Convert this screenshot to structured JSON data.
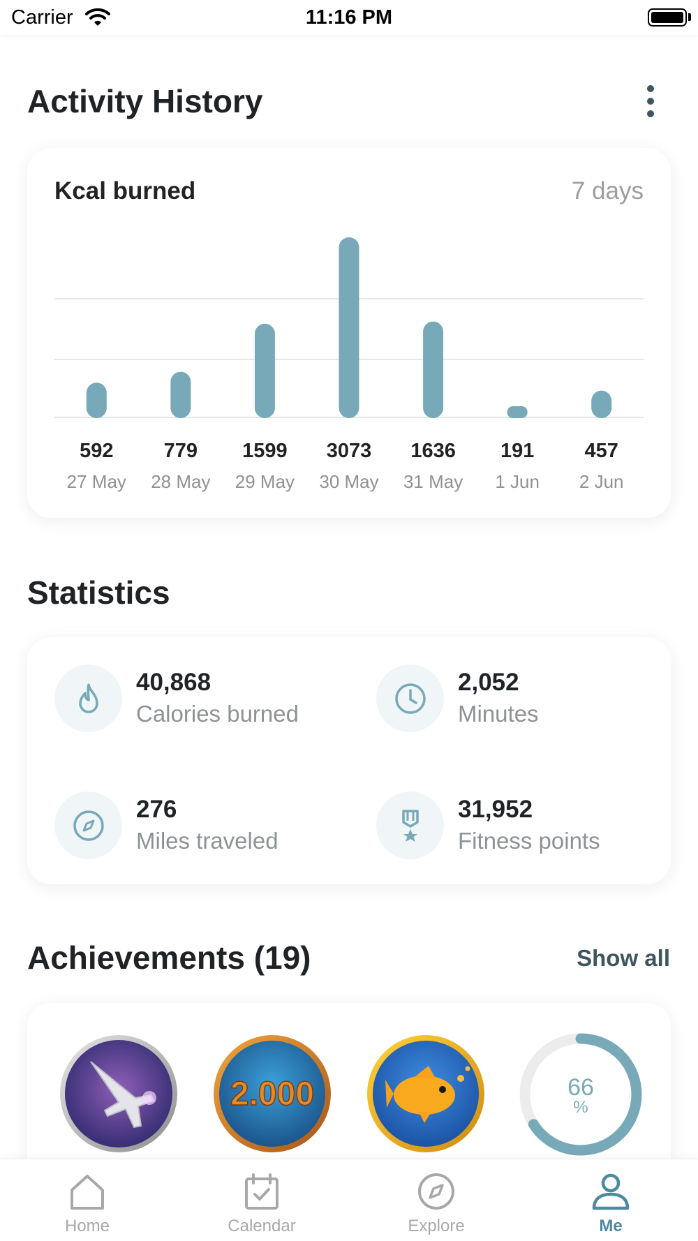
{
  "status_bar": {
    "carrier": "Carrier",
    "time": "11:16 PM"
  },
  "activity": {
    "title": "Activity History",
    "card_title": "Kcal burned",
    "period": "7 days"
  },
  "chart_data": {
    "type": "bar",
    "title": "Kcal burned",
    "categories": [
      "27 May",
      "28 May",
      "29 May",
      "30 May",
      "31 May",
      "1 Jun",
      "2 Jun"
    ],
    "values": [
      592,
      779,
      1599,
      3073,
      1636,
      191,
      457
    ],
    "xlabel": "",
    "ylabel": "",
    "ylim": [
      0,
      3073
    ],
    "grid": true,
    "bar_color": "#77a9b8"
  },
  "statistics": {
    "title": "Statistics",
    "items": [
      {
        "value": "40,868",
        "label": "Calories burned",
        "icon": "flame-icon"
      },
      {
        "value": "2,052",
        "label": "Minutes",
        "icon": "clock-icon"
      },
      {
        "value": "276",
        "label": "Miles traveled",
        "icon": "compass-icon"
      },
      {
        "value": "31,952",
        "label": "Fitness points",
        "icon": "medal-icon"
      }
    ]
  },
  "achievements": {
    "title": "Achievements (19)",
    "show_all": "Show all",
    "badges": [
      {
        "icon": "jet-badge-icon"
      },
      {
        "icon": "2000-badge-icon",
        "text": "2.000"
      },
      {
        "icon": "goldfish-badge-icon"
      }
    ],
    "progress": {
      "value": 66,
      "number": "66",
      "unit": "%"
    }
  },
  "tabs": [
    {
      "label": "Home",
      "icon": "home-icon",
      "active": false
    },
    {
      "label": "Calendar",
      "icon": "calendar-icon",
      "active": false
    },
    {
      "label": "Explore",
      "icon": "compass-icon",
      "active": false
    },
    {
      "label": "Me",
      "icon": "user-icon",
      "active": true
    }
  ],
  "colors": {
    "accent": "#77a9b8",
    "text": "#1f2326",
    "muted": "#8d9295",
    "link": "#3e5560"
  }
}
